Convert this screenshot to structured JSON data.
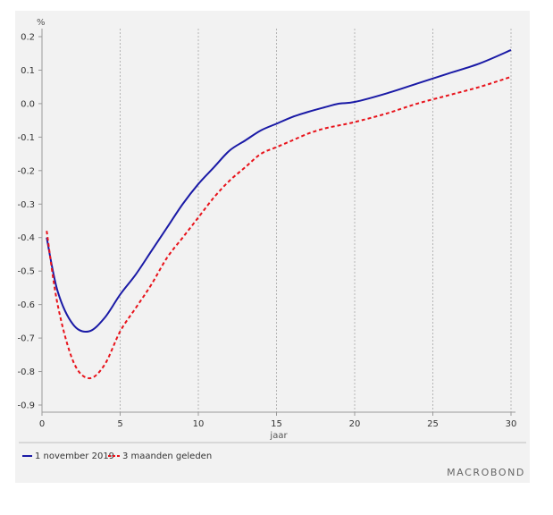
{
  "chart_data": {
    "type": "line",
    "ylabel": "%",
    "xlabel": "jaar",
    "xlim": [
      0,
      30
    ],
    "ylim": [
      -0.9,
      0.2
    ],
    "x_ticks": [
      0,
      5,
      10,
      15,
      20,
      25,
      30
    ],
    "x_tick_labels": [
      "0",
      "5",
      "10",
      "15",
      "20",
      "25",
      "30"
    ],
    "y_ticks": [
      0.2,
      0.1,
      0.0,
      -0.1,
      -0.2,
      -0.3,
      -0.4,
      -0.5,
      -0.6,
      -0.7,
      -0.8,
      -0.9
    ],
    "y_tick_labels": [
      "0.2",
      "0.1",
      "0.0",
      "-0.1",
      "-0.2",
      "-0.3",
      "-0.4",
      "-0.5",
      "-0.6",
      "-0.7",
      "-0.8",
      "-0.9"
    ],
    "grid": {
      "vertical": true,
      "horizontal": false
    },
    "legend_position": "bottom-left",
    "series": [
      {
        "name": "1 november 2019",
        "color": "#1a1aa6",
        "style": "solid",
        "x": [
          0.3,
          1,
          2,
          3,
          4,
          5,
          6,
          7,
          8,
          9,
          10,
          11,
          12,
          13,
          14,
          15,
          16,
          17,
          18,
          19,
          20,
          22,
          24,
          26,
          28,
          30
        ],
        "y": [
          -0.4,
          -0.56,
          -0.66,
          -0.68,
          -0.64,
          -0.57,
          -0.51,
          -0.44,
          -0.37,
          -0.3,
          -0.24,
          -0.19,
          -0.14,
          -0.11,
          -0.08,
          -0.06,
          -0.04,
          -0.025,
          -0.012,
          0.0,
          0.005,
          0.03,
          0.06,
          0.09,
          0.12,
          0.16
        ]
      },
      {
        "name": "3 maanden geleden",
        "color": "#e8131b",
        "style": "dashed",
        "x": [
          0.3,
          1,
          2,
          3,
          4,
          5,
          6,
          7,
          8,
          9,
          10,
          11,
          12,
          13,
          14,
          15,
          16,
          17,
          18,
          19,
          20,
          22,
          24,
          26,
          28,
          30
        ],
        "y": [
          -0.38,
          -0.6,
          -0.77,
          -0.82,
          -0.78,
          -0.68,
          -0.61,
          -0.54,
          -0.46,
          -0.4,
          -0.34,
          -0.28,
          -0.23,
          -0.19,
          -0.15,
          -0.13,
          -0.11,
          -0.09,
          -0.075,
          -0.065,
          -0.055,
          -0.03,
          0.0,
          0.025,
          0.05,
          0.08
        ]
      }
    ]
  },
  "brand": {
    "text": "MACROBOND"
  }
}
